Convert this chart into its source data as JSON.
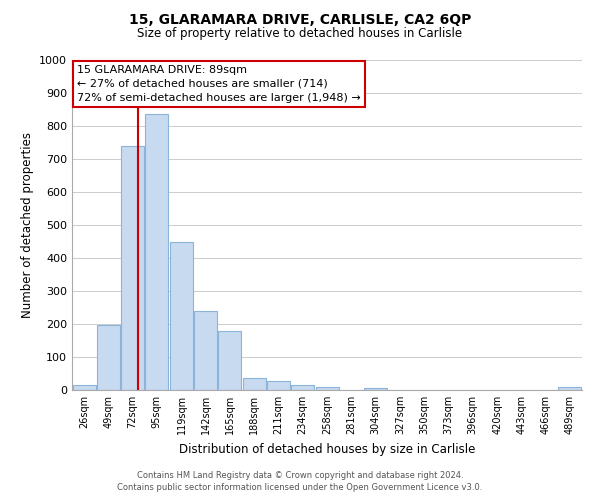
{
  "title": "15, GLARAMARA DRIVE, CARLISLE, CA2 6QP",
  "subtitle": "Size of property relative to detached houses in Carlisle",
  "xlabel": "Distribution of detached houses by size in Carlisle",
  "ylabel": "Number of detached properties",
  "bar_color": "#c8daf0",
  "bar_edge_color": "#8ab4d8",
  "bg_color": "#ffffff",
  "grid_color": "#cccccc",
  "vline_x": 89,
  "vline_color": "#cc0000",
  "categories": [
    "26sqm",
    "49sqm",
    "72sqm",
    "95sqm",
    "119sqm",
    "142sqm",
    "165sqm",
    "188sqm",
    "211sqm",
    "234sqm",
    "258sqm",
    "281sqm",
    "304sqm",
    "327sqm",
    "350sqm",
    "373sqm",
    "396sqm",
    "420sqm",
    "443sqm",
    "466sqm",
    "489sqm"
  ],
  "bin_edges": [
    26,
    49,
    72,
    95,
    119,
    142,
    165,
    188,
    211,
    234,
    258,
    281,
    304,
    327,
    350,
    373,
    396,
    420,
    443,
    466,
    489
  ],
  "bin_width": 23,
  "values": [
    15,
    197,
    739,
    835,
    447,
    240,
    178,
    35,
    27,
    15,
    10,
    0,
    5,
    0,
    0,
    0,
    0,
    0,
    0,
    0,
    8
  ],
  "ylim": [
    0,
    1000
  ],
  "yticks": [
    0,
    100,
    200,
    300,
    400,
    500,
    600,
    700,
    800,
    900,
    1000
  ],
  "annotation_line1": "15 GLARAMARA DRIVE: 89sqm",
  "annotation_line2": "← 27% of detached houses are smaller (714)",
  "annotation_line3": "72% of semi-detached houses are larger (1,948) →",
  "footer_line1": "Contains HM Land Registry data © Crown copyright and database right 2024.",
  "footer_line2": "Contains public sector information licensed under the Open Government Licence v3.0."
}
